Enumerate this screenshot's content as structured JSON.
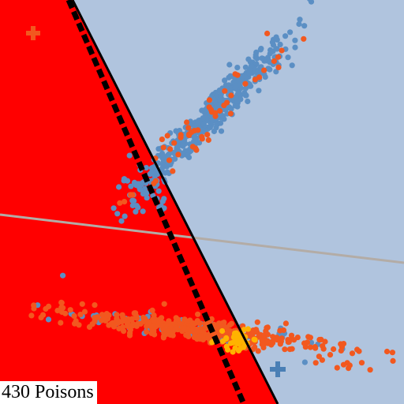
{
  "caption": {
    "poison_count_text": "430 Poisons"
  },
  "colors": {
    "red_region": "#ff0000",
    "blue_region": "#b0c4de",
    "blue_points": "#5b8fc4",
    "orange_points": "#f2581f",
    "yellow_points": "#ffb300",
    "boundary_solid": "#000000",
    "boundary_dashed": "#000000",
    "gray_line": "#b3aca6",
    "blue_marker": "#4a7fb5",
    "orange_marker": "#f2581f"
  },
  "markers": [
    {
      "name": "orange-plus-marker",
      "symbol": "+"
    },
    {
      "name": "blue-plus-marker",
      "symbol": "+"
    }
  ]
}
